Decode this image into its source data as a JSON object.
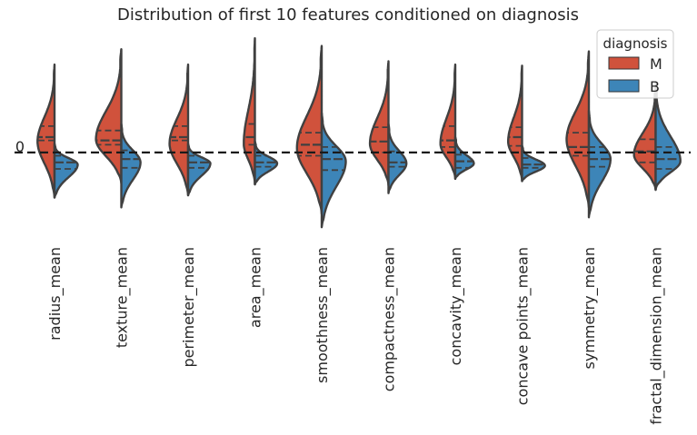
{
  "chart_data": {
    "type": "violin",
    "title": "Distribution of first 10 features conditioned on diagnosis",
    "xlabel": "",
    "ylabel": "",
    "categories": [
      "radius_mean",
      "texture_mean",
      "perimeter_mean",
      "area_mean",
      "smoothness_mean",
      "compactness_mean",
      "concavity_mean",
      "concave points_mean",
      "symmetry_mean",
      "fractal_dimension_mean"
    ],
    "y_ticks": [
      0
    ],
    "y_tick_labels": [
      "0"
    ],
    "ylim": [
      -3.6,
      5.7
    ],
    "reference_line": {
      "y": 0,
      "style": "dashed"
    },
    "split": true,
    "inner": "quartile",
    "grid": false,
    "legend": {
      "title": "diagnosis",
      "position": "top-right",
      "entries": [
        "M",
        "B"
      ]
    },
    "colors": {
      "M": "#d0523c",
      "B": "#3d85b8",
      "outline": "#404040"
    },
    "series": [
      {
        "name": "M",
        "min": [
          -2.05,
          -1.4,
          -1.95,
          -1.45,
          -2.8,
          -1.5,
          -1.2,
          -1.3,
          -2.5,
          -1.7
        ],
        "q1": [
          0.55,
          0.35,
          0.55,
          0.35,
          -0.15,
          0.0,
          0.25,
          0.3,
          -0.15,
          -0.45
        ],
        "median": [
          0.7,
          0.55,
          0.7,
          0.7,
          0.35,
          0.5,
          0.55,
          0.7,
          0.25,
          0.05
        ],
        "q3": [
          1.2,
          1.0,
          1.2,
          1.3,
          0.9,
          1.15,
          1.2,
          1.15,
          0.9,
          0.6
        ],
        "max": [
          4.0,
          4.7,
          4.0,
          5.2,
          4.85,
          4.15,
          4.0,
          3.95,
          4.6,
          3.0
        ],
        "peak": [
          0.5,
          0.6,
          0.4,
          0.4,
          0.2,
          0.4,
          0.4,
          0.5,
          0.6,
          -0.1
        ],
        "width": [
          0.55,
          0.82,
          0.6,
          0.36,
          0.8,
          0.6,
          0.48,
          0.45,
          0.72,
          0.7
        ]
      },
      {
        "name": "B",
        "min": [
          -2.05,
          -2.5,
          -1.95,
          -1.45,
          -3.4,
          -1.85,
          -1.2,
          -1.3,
          -2.95,
          -1.7
        ],
        "q1": [
          -0.75,
          -0.7,
          -0.7,
          -0.65,
          -0.8,
          -0.65,
          -0.7,
          -0.7,
          -0.65,
          -0.75
        ],
        "median": [
          -0.45,
          -0.3,
          -0.45,
          -0.45,
          -0.3,
          -0.45,
          -0.4,
          -0.55,
          -0.3,
          -0.3
        ],
        "q3": [
          -0.15,
          0.1,
          -0.15,
          -0.15,
          0.25,
          0.05,
          -0.1,
          -0.25,
          0.25,
          0.25
        ],
        "max": [
          0.4,
          1.3,
          0.4,
          0.5,
          1.8,
          1.3,
          0.7,
          0.3,
          1.9,
          3.2
        ],
        "peak": [
          -0.55,
          -0.45,
          -0.5,
          -0.5,
          -0.4,
          -0.5,
          -0.5,
          -0.6,
          -0.3,
          -0.4
        ],
        "width": [
          0.75,
          0.62,
          0.72,
          0.72,
          0.78,
          0.58,
          0.6,
          0.74,
          0.7,
          0.8
        ]
      }
    ]
  }
}
